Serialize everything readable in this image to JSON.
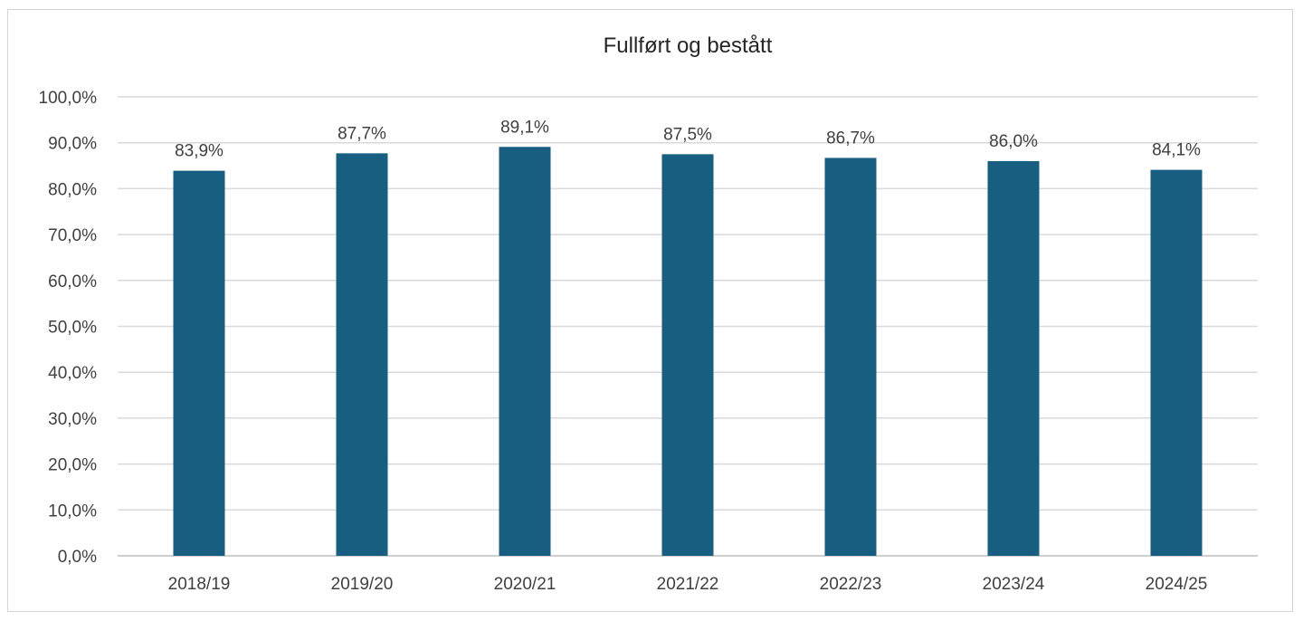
{
  "chart_data": {
    "type": "bar",
    "title": "Fullført og bestått",
    "xlabel": "",
    "ylabel": "",
    "categories": [
      "2018/19",
      "2019/20",
      "2020/21",
      "2021/22",
      "2022/23",
      "2023/24",
      "2024/25"
    ],
    "values": [
      83.9,
      87.7,
      89.1,
      87.5,
      86.7,
      86.0,
      84.1
    ],
    "data_labels": [
      "83,9%",
      "87,7%",
      "89,1%",
      "87,5%",
      "86,7%",
      "86,0%",
      "84,1%"
    ],
    "ylim": [
      0,
      100
    ],
    "y_ticks": [
      0,
      10,
      20,
      30,
      40,
      50,
      60,
      70,
      80,
      90,
      100
    ],
    "y_tick_labels": [
      "0,0%",
      "10,0%",
      "20,0%",
      "30,0%",
      "40,0%",
      "50,0%",
      "60,0%",
      "70,0%",
      "80,0%",
      "90,0%",
      "100,0%"
    ],
    "grid": true,
    "legend": "none",
    "bar_color": "#175e80"
  }
}
